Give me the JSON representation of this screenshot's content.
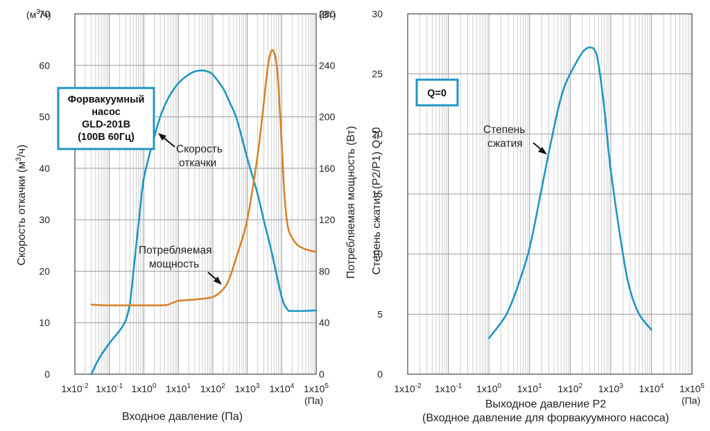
{
  "colors": {
    "blue": "#1f95c2",
    "orange": "#d8832a",
    "grid": "#bbbbbb",
    "axis": "#444444",
    "box_border": "#1f95c2"
  },
  "chart_data": [
    {
      "type": "line",
      "x_scale": "log",
      "xlim": [
        0.01,
        100000
      ],
      "x_tick_labels": [
        "1x10",
        "1x10",
        "1x10",
        "1x10",
        "1x10",
        "1x10",
        "1x10",
        "1x10"
      ],
      "x_tick_exponents": [
        "-2",
        "-1",
        "0",
        "1",
        "2",
        "3",
        "4",
        "5"
      ],
      "x_unit": "(Па)",
      "xlabel": "Входное давление (Па)",
      "ylabel_left": "Скорость откачки (м³/ч)",
      "ylabel_left_parts": [
        "Скорость откачки (м",
        "3",
        "/ч)"
      ],
      "y_unit_left_parts": [
        "(м",
        "3",
        "/ч)"
      ],
      "ylim_left": [
        0,
        70
      ],
      "y_ticks_left": [
        "0",
        "10",
        "20",
        "30",
        "40",
        "50",
        "60",
        "70"
      ],
      "ylabel_right": "Потребляемая мощность (Вт)",
      "y_unit_right": "(Вт)",
      "ylim_right": [
        0,
        280
      ],
      "y_ticks_right": [
        "0",
        "40",
        "80",
        "120",
        "160",
        "200",
        "240",
        "280"
      ],
      "grid": true,
      "legend_box": [
        "Форвакуумный",
        "насос",
        "GLD-201B",
        "(100В 60Гц)"
      ],
      "series": [
        {
          "name": "Скорость откачки",
          "color": "blue",
          "axis": "left",
          "x": [
            0.03,
            0.05,
            0.1,
            0.2,
            0.3,
            0.4,
            0.5,
            0.7,
            1,
            2,
            3,
            5,
            10,
            20,
            30,
            50,
            70,
            100,
            200,
            300,
            500,
            1000,
            2000,
            3000,
            5000,
            10000,
            15000,
            20000,
            50000,
            100000
          ],
          "y": [
            0,
            3,
            6,
            8.5,
            10.5,
            14,
            20,
            29,
            38,
            46,
            50,
            53.5,
            56.5,
            58.2,
            58.8,
            59,
            58.8,
            58.2,
            55.5,
            53,
            49.5,
            42,
            35,
            30,
            24,
            15,
            12.5,
            12.3,
            12.3,
            12.4
          ]
        },
        {
          "name": "Потребляемая мощность",
          "color": "orange",
          "axis": "right",
          "x": [
            0.03,
            0.1,
            1,
            3,
            5,
            10,
            30,
            100,
            200,
            300,
            500,
            1000,
            2000,
            3000,
            4000,
            5000,
            6000,
            7000,
            8000,
            10000,
            12000,
            15000,
            20000,
            30000,
            50000,
            100000
          ],
          "y": [
            54,
            53.5,
            53.5,
            53.5,
            54,
            57,
            58,
            60,
            66,
            74,
            92,
            120,
            170,
            210,
            240,
            251,
            250,
            242,
            225,
            180,
            140,
            115,
            106,
            100,
            97,
            95
          ]
        }
      ],
      "annotations": [
        {
          "lines": [
            "Скорость",
            "откачки"
          ]
        },
        {
          "lines": [
            "Потребляемая",
            "мощность"
          ]
        }
      ]
    },
    {
      "type": "line",
      "x_scale": "log",
      "xlim": [
        0.01,
        100000
      ],
      "x_tick_labels": [
        "1x10",
        "1x10",
        "1x10",
        "1x10",
        "1x10",
        "1x10",
        "1x10",
        "1x10"
      ],
      "x_tick_exponents": [
        "-2",
        "-1",
        "0",
        "1",
        "2",
        "3",
        "4",
        "5"
      ],
      "x_unit": "(Па)",
      "xlabel": "Выходное давление P2",
      "xlabel_sub": "(Входное давление для форвакуумного насоса)",
      "ylabel": "Степень сжатия (P2/P1) Q=0",
      "ylim": [
        0,
        30
      ],
      "y_ticks": [
        "0",
        "5",
        "10",
        "15",
        "20",
        "25",
        "30"
      ],
      "grid": true,
      "legend_box": [
        "Q=0"
      ],
      "series": [
        {
          "name": "Степень сжатия",
          "color": "blue",
          "x": [
            1,
            2,
            3,
            5,
            10,
            20,
            30,
            50,
            70,
            100,
            150,
            200,
            250,
            300,
            400,
            500,
            700,
            1000,
            2000,
            3000,
            5000,
            10000
          ],
          "y": [
            3,
            4.3,
            5.3,
            7.2,
            10.5,
            15.5,
            18.5,
            22,
            23.8,
            25,
            26.1,
            26.8,
            27.1,
            27.2,
            27,
            25.8,
            22,
            17,
            10,
            7,
            5,
            3.7
          ]
        }
      ],
      "annotations": [
        {
          "lines": [
            "Степень",
            "сжатия"
          ]
        }
      ]
    }
  ]
}
